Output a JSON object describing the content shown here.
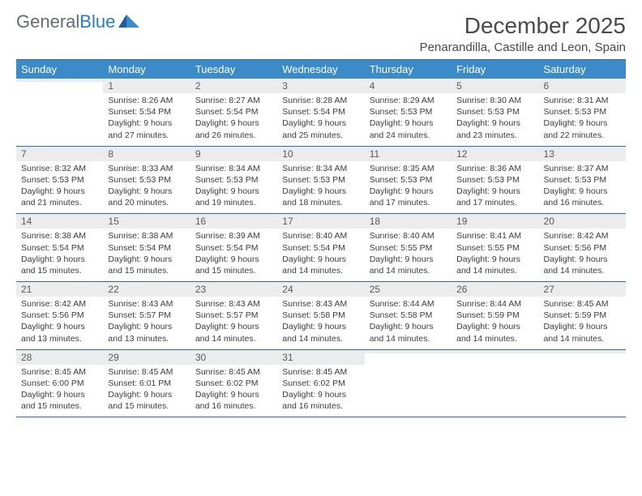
{
  "logo": {
    "text1": "General",
    "text2": "Blue"
  },
  "title": "December 2025",
  "subtitle": "Penarandilla, Castille and Leon, Spain",
  "colors": {
    "header_bg": "#3b8bc9",
    "header_text": "#ffffff",
    "daynum_bg": "#ececec",
    "rule": "#2a6ea8",
    "text": "#333333",
    "logo_gray": "#646b74",
    "logo_blue": "#2a7cc2"
  },
  "dayHeaders": [
    "Sunday",
    "Monday",
    "Tuesday",
    "Wednesday",
    "Thursday",
    "Friday",
    "Saturday"
  ],
  "weeks": [
    [
      {
        "n": "",
        "l1": "",
        "l2": "",
        "l3": "",
        "l4": ""
      },
      {
        "n": "1",
        "l1": "Sunrise: 8:26 AM",
        "l2": "Sunset: 5:54 PM",
        "l3": "Daylight: 9 hours",
        "l4": "and 27 minutes."
      },
      {
        "n": "2",
        "l1": "Sunrise: 8:27 AM",
        "l2": "Sunset: 5:54 PM",
        "l3": "Daylight: 9 hours",
        "l4": "and 26 minutes."
      },
      {
        "n": "3",
        "l1": "Sunrise: 8:28 AM",
        "l2": "Sunset: 5:54 PM",
        "l3": "Daylight: 9 hours",
        "l4": "and 25 minutes."
      },
      {
        "n": "4",
        "l1": "Sunrise: 8:29 AM",
        "l2": "Sunset: 5:53 PM",
        "l3": "Daylight: 9 hours",
        "l4": "and 24 minutes."
      },
      {
        "n": "5",
        "l1": "Sunrise: 8:30 AM",
        "l2": "Sunset: 5:53 PM",
        "l3": "Daylight: 9 hours",
        "l4": "and 23 minutes."
      },
      {
        "n": "6",
        "l1": "Sunrise: 8:31 AM",
        "l2": "Sunset: 5:53 PM",
        "l3": "Daylight: 9 hours",
        "l4": "and 22 minutes."
      }
    ],
    [
      {
        "n": "7",
        "l1": "Sunrise: 8:32 AM",
        "l2": "Sunset: 5:53 PM",
        "l3": "Daylight: 9 hours",
        "l4": "and 21 minutes."
      },
      {
        "n": "8",
        "l1": "Sunrise: 8:33 AM",
        "l2": "Sunset: 5:53 PM",
        "l3": "Daylight: 9 hours",
        "l4": "and 20 minutes."
      },
      {
        "n": "9",
        "l1": "Sunrise: 8:34 AM",
        "l2": "Sunset: 5:53 PM",
        "l3": "Daylight: 9 hours",
        "l4": "and 19 minutes."
      },
      {
        "n": "10",
        "l1": "Sunrise: 8:34 AM",
        "l2": "Sunset: 5:53 PM",
        "l3": "Daylight: 9 hours",
        "l4": "and 18 minutes."
      },
      {
        "n": "11",
        "l1": "Sunrise: 8:35 AM",
        "l2": "Sunset: 5:53 PM",
        "l3": "Daylight: 9 hours",
        "l4": "and 17 minutes."
      },
      {
        "n": "12",
        "l1": "Sunrise: 8:36 AM",
        "l2": "Sunset: 5:53 PM",
        "l3": "Daylight: 9 hours",
        "l4": "and 17 minutes."
      },
      {
        "n": "13",
        "l1": "Sunrise: 8:37 AM",
        "l2": "Sunset: 5:53 PM",
        "l3": "Daylight: 9 hours",
        "l4": "and 16 minutes."
      }
    ],
    [
      {
        "n": "14",
        "l1": "Sunrise: 8:38 AM",
        "l2": "Sunset: 5:54 PM",
        "l3": "Daylight: 9 hours",
        "l4": "and 15 minutes."
      },
      {
        "n": "15",
        "l1": "Sunrise: 8:38 AM",
        "l2": "Sunset: 5:54 PM",
        "l3": "Daylight: 9 hours",
        "l4": "and 15 minutes."
      },
      {
        "n": "16",
        "l1": "Sunrise: 8:39 AM",
        "l2": "Sunset: 5:54 PM",
        "l3": "Daylight: 9 hours",
        "l4": "and 15 minutes."
      },
      {
        "n": "17",
        "l1": "Sunrise: 8:40 AM",
        "l2": "Sunset: 5:54 PM",
        "l3": "Daylight: 9 hours",
        "l4": "and 14 minutes."
      },
      {
        "n": "18",
        "l1": "Sunrise: 8:40 AM",
        "l2": "Sunset: 5:55 PM",
        "l3": "Daylight: 9 hours",
        "l4": "and 14 minutes."
      },
      {
        "n": "19",
        "l1": "Sunrise: 8:41 AM",
        "l2": "Sunset: 5:55 PM",
        "l3": "Daylight: 9 hours",
        "l4": "and 14 minutes."
      },
      {
        "n": "20",
        "l1": "Sunrise: 8:42 AM",
        "l2": "Sunset: 5:56 PM",
        "l3": "Daylight: 9 hours",
        "l4": "and 14 minutes."
      }
    ],
    [
      {
        "n": "21",
        "l1": "Sunrise: 8:42 AM",
        "l2": "Sunset: 5:56 PM",
        "l3": "Daylight: 9 hours",
        "l4": "and 13 minutes."
      },
      {
        "n": "22",
        "l1": "Sunrise: 8:43 AM",
        "l2": "Sunset: 5:57 PM",
        "l3": "Daylight: 9 hours",
        "l4": "and 13 minutes."
      },
      {
        "n": "23",
        "l1": "Sunrise: 8:43 AM",
        "l2": "Sunset: 5:57 PM",
        "l3": "Daylight: 9 hours",
        "l4": "and 14 minutes."
      },
      {
        "n": "24",
        "l1": "Sunrise: 8:43 AM",
        "l2": "Sunset: 5:58 PM",
        "l3": "Daylight: 9 hours",
        "l4": "and 14 minutes."
      },
      {
        "n": "25",
        "l1": "Sunrise: 8:44 AM",
        "l2": "Sunset: 5:58 PM",
        "l3": "Daylight: 9 hours",
        "l4": "and 14 minutes."
      },
      {
        "n": "26",
        "l1": "Sunrise: 8:44 AM",
        "l2": "Sunset: 5:59 PM",
        "l3": "Daylight: 9 hours",
        "l4": "and 14 minutes."
      },
      {
        "n": "27",
        "l1": "Sunrise: 8:45 AM",
        "l2": "Sunset: 5:59 PM",
        "l3": "Daylight: 9 hours",
        "l4": "and 14 minutes."
      }
    ],
    [
      {
        "n": "28",
        "l1": "Sunrise: 8:45 AM",
        "l2": "Sunset: 6:00 PM",
        "l3": "Daylight: 9 hours",
        "l4": "and 15 minutes."
      },
      {
        "n": "29",
        "l1": "Sunrise: 8:45 AM",
        "l2": "Sunset: 6:01 PM",
        "l3": "Daylight: 9 hours",
        "l4": "and 15 minutes."
      },
      {
        "n": "30",
        "l1": "Sunrise: 8:45 AM",
        "l2": "Sunset: 6:02 PM",
        "l3": "Daylight: 9 hours",
        "l4": "and 16 minutes."
      },
      {
        "n": "31",
        "l1": "Sunrise: 8:45 AM",
        "l2": "Sunset: 6:02 PM",
        "l3": "Daylight: 9 hours",
        "l4": "and 16 minutes."
      },
      {
        "n": "",
        "l1": "",
        "l2": "",
        "l3": "",
        "l4": ""
      },
      {
        "n": "",
        "l1": "",
        "l2": "",
        "l3": "",
        "l4": ""
      },
      {
        "n": "",
        "l1": "",
        "l2": "",
        "l3": "",
        "l4": ""
      }
    ]
  ]
}
